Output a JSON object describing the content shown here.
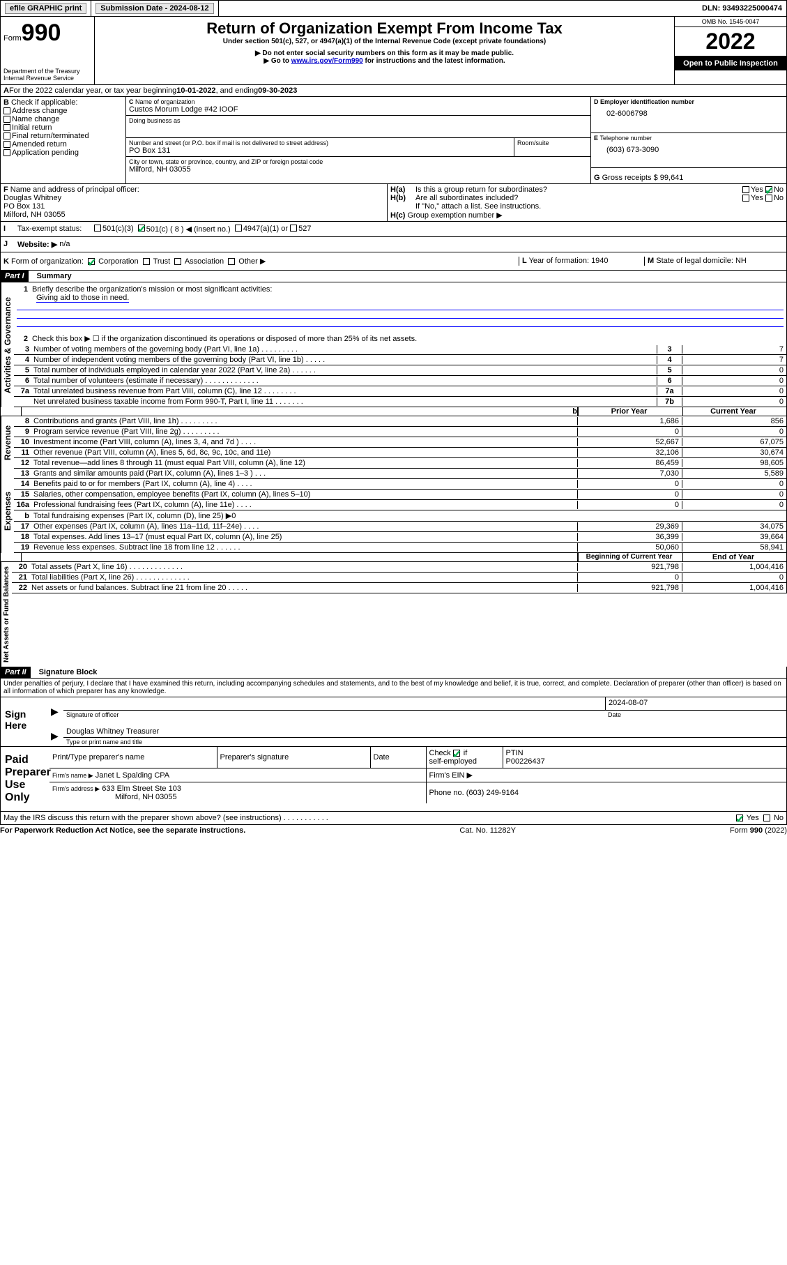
{
  "topbar": {
    "efile": "efile GRAPHIC print",
    "sub_label": "Submission Date - 2024-08-12",
    "dln": "DLN: 93493225000474"
  },
  "header": {
    "form_word": "Form",
    "form_num": "990",
    "dept": "Department of the Treasury",
    "irs": "Internal Revenue Service",
    "title": "Return of Organization Exempt From Income Tax",
    "sub1": "Under section 501(c), 527, or 4947(a)(1) of the Internal Revenue Code (except private foundations)",
    "sub2": "▶ Do not enter social security numbers on this form as it may be made public.",
    "sub3_pre": "▶ Go to ",
    "sub3_link": "www.irs.gov/Form990",
    "sub3_post": " for instructions and the latest information.",
    "omb": "OMB No. 1545-0047",
    "year": "2022",
    "open": "Open to Public Inspection"
  },
  "lineA": {
    "text_pre": "For the 2022 calendar year, or tax year beginning ",
    "begin": "10-01-2022",
    "mid": " , and ending ",
    "end": "09-30-2023"
  },
  "B": {
    "label": "Check if applicable:",
    "items": [
      "Address change",
      "Name change",
      "Initial return",
      "Final return/terminated",
      "Amended return",
      "Application pending"
    ]
  },
  "C": {
    "name_label": "Name of organization",
    "name": "Custos Morum Lodge #42 IOOF",
    "dba_label": "Doing business as",
    "dba": "",
    "addr_label": "Number and street (or P.O. box if mail is not delivered to street address)",
    "room_label": "Room/suite",
    "addr": "PO Box 131",
    "city_label": "City or town, state or province, country, and ZIP or foreign postal code",
    "city": "Milford, NH   03055"
  },
  "D": {
    "label": "Employer identification number",
    "val": "02-6006798"
  },
  "E": {
    "label": "Telephone number",
    "val": "(603) 673-3090"
  },
  "G": {
    "label": "Gross receipts $",
    "val": "99,641"
  },
  "F": {
    "label": "Name and address of principal officer:",
    "name": "Douglas Whitney",
    "addr1": "PO Box 131",
    "addr2": "Milford, NH   03055"
  },
  "H": {
    "a": "Is this a group return for subordinates?",
    "a_no": "No",
    "a_yes": "Yes",
    "b": "Are all subordinates included?",
    "b_no": "No",
    "b_yes": "Yes",
    "note": "If \"No,\" attach a list. See instructions.",
    "c": "Group exemption number ▶"
  },
  "I": {
    "label": "Tax-exempt status:",
    "opts": [
      "501(c)(3)",
      "501(c) ( 8 ) ◀ (insert no.)",
      "4947(a)(1) or",
      "527"
    ]
  },
  "J": {
    "label": "Website: ▶",
    "val": "n/a"
  },
  "K": {
    "label": "Form of organization:",
    "opts": [
      "Corporation",
      "Trust",
      "Association",
      "Other ▶"
    ]
  },
  "L": {
    "label": "Year of formation:",
    "val": "1940"
  },
  "M": {
    "label": "State of legal domicile:",
    "val": "NH"
  },
  "part1": {
    "label": "Part I",
    "title": "Summary"
  },
  "summary": {
    "q1": "Briefly describe the organization's mission or most significant activities:",
    "mission": "Giving aid to those in need.",
    "q2": "Check this box ▶ ☐  if the organization discontinued its operations or disposed of more than 25% of its net assets.",
    "rows_gov": [
      {
        "n": "3",
        "t": "Number of voting members of the governing body (Part VI, line 1a)   .    .    .    .    .    .    .    .    .",
        "box": "3",
        "v": "7"
      },
      {
        "n": "4",
        "t": "Number of independent voting members of the governing body (Part VI, line 1b)   .    .    .    .    .",
        "box": "4",
        "v": "7"
      },
      {
        "n": "5",
        "t": "Total number of individuals employed in calendar year 2022 (Part V, line 2a)   .    .    .    .    .    .",
        "box": "5",
        "v": "0"
      },
      {
        "n": "6",
        "t": "Total number of volunteers (estimate if necessary)   .    .    .    .    .    .    .    .    .    .    .    .    .",
        "box": "6",
        "v": "0"
      },
      {
        "n": "7a",
        "t": "Total unrelated business revenue from Part VIII, column (C), line 12   .    .    .    .    .    .    .    .",
        "box": "7a",
        "v": "0"
      },
      {
        "n": "",
        "t": "Net unrelated business taxable income from Form 990-T, Part I, line 11   .    .    .    .    .    .    .",
        "box": "7b",
        "v": "0"
      }
    ],
    "hdr_prior": "Prior Year",
    "hdr_curr": "Current Year",
    "rev": [
      {
        "n": "8",
        "t": "Contributions and grants (Part VIII, line 1h)    .    .    .    .    .    .    .    .    .",
        "p": "1,686",
        "c": "856"
      },
      {
        "n": "9",
        "t": "Program service revenue (Part VIII, line 2g)    .    .    .    .    .    .    .    .    .",
        "p": "0",
        "c": "0"
      },
      {
        "n": "10",
        "t": "Investment income (Part VIII, column (A), lines 3, 4, and 7d )   .    .    .    .",
        "p": "52,667",
        "c": "67,075"
      },
      {
        "n": "11",
        "t": "Other revenue (Part VIII, column (A), lines 5, 6d, 8c, 9c, 10c, and 11e)",
        "p": "32,106",
        "c": "30,674"
      },
      {
        "n": "12",
        "t": "Total revenue—add lines 8 through 11 (must equal Part VIII, column (A), line 12)",
        "p": "86,459",
        "c": "98,605"
      }
    ],
    "exp": [
      {
        "n": "13",
        "t": "Grants and similar amounts paid (Part IX, column (A), lines 1–3 )   .    .    .",
        "p": "7,030",
        "c": "5,589"
      },
      {
        "n": "14",
        "t": "Benefits paid to or for members (Part IX, column (A), line 4)   .    .    .    .",
        "p": "0",
        "c": "0"
      },
      {
        "n": "15",
        "t": "Salaries, other compensation, employee benefits (Part IX, column (A), lines 5–10)",
        "p": "0",
        "c": "0"
      },
      {
        "n": "16a",
        "t": "Professional fundraising fees (Part IX, column (A), line 11e)   .    .    .    .",
        "p": "0",
        "c": "0"
      },
      {
        "n": "b",
        "t": "Total fundraising expenses (Part IX, column (D), line 25) ▶0",
        "p": "",
        "c": "",
        "gray": true
      },
      {
        "n": "17",
        "t": "Other expenses (Part IX, column (A), lines 11a–11d, 11f–24e)   .    .    .    .",
        "p": "29,369",
        "c": "34,075"
      },
      {
        "n": "18",
        "t": "Total expenses. Add lines 13–17 (must equal Part IX, column (A), line 25)",
        "p": "36,399",
        "c": "39,664"
      },
      {
        "n": "19",
        "t": "Revenue less expenses. Subtract line 18 from line 12   .    .    .    .    .    .",
        "p": "50,060",
        "c": "58,941"
      }
    ],
    "hdr_beg": "Beginning of Current Year",
    "hdr_end": "End of Year",
    "net": [
      {
        "n": "20",
        "t": "Total assets (Part X, line 16)   .    .    .    .    .    .    .    .    .    .    .    .    .",
        "p": "921,798",
        "c": "1,004,416"
      },
      {
        "n": "21",
        "t": "Total liabilities (Part X, line 26)   .    .    .    .    .    .    .    .    .    .    .    .    .",
        "p": "0",
        "c": "0"
      },
      {
        "n": "22",
        "t": "Net assets or fund balances. Subtract line 21 from line 20   .    .    .    .    .",
        "p": "921,798",
        "c": "1,004,416"
      }
    ]
  },
  "part2": {
    "label": "Part II",
    "title": "Signature Block"
  },
  "sig": {
    "perjury": "Under penalties of perjury, I declare that I have examined this return, including accompanying schedules and statements, and to the best of my knowledge and belief, it is true, correct, and complete. Declaration of preparer (other than officer) is based on all information of which preparer has any knowledge.",
    "sign_here": "Sign Here",
    "sig_officer": "Signature of officer",
    "date": "Date",
    "date_val": "2024-08-07",
    "officer_name": "Douglas Whitney  Treasurer",
    "type_name": "Type or print name and title",
    "paid": "Paid Preparer Use Only",
    "prep_name_label": "Print/Type preparer's name",
    "prep_sig_label": "Preparer's signature",
    "prep_date_label": "Date",
    "check_if": "Check",
    "self_emp": "self-employed",
    "ptin_label": "PTIN",
    "ptin": "P00226437",
    "firm_name_label": "Firm's name    ▶",
    "firm_name": "Janet L Spalding CPA",
    "firm_ein_label": "Firm's EIN ▶",
    "firm_addr_label": "Firm's address ▶",
    "firm_addr1": "633 Elm Street Ste 103",
    "firm_addr2": "Milford, NH   03055",
    "phone_label": "Phone no.",
    "phone": "(603) 249-9164",
    "may_irs": "May the IRS discuss this return with the preparer shown above? (see instructions)    .    .    .    .    .    .    .    .    .    .    .",
    "yes": "Yes",
    "no": "No"
  },
  "footer": {
    "left": "For Paperwork Reduction Act Notice, see the separate instructions.",
    "mid": "Cat. No. 11282Y",
    "right": "Form 990 (2022)"
  },
  "vert": {
    "gov": "Activities & Governance",
    "rev": "Revenue",
    "exp": "Expenses",
    "net": "Net Assets or Fund Balances"
  }
}
